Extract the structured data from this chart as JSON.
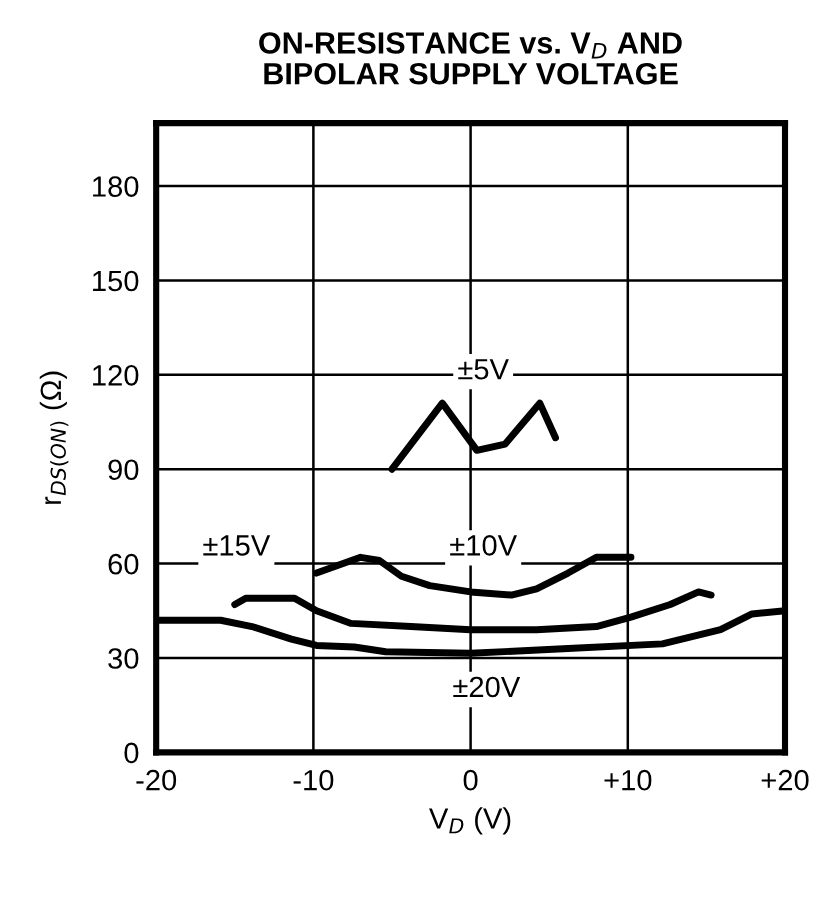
{
  "chart_data": {
    "type": "line",
    "title": "ON-RESISTANCE vs. V$_{D}$ AND\nBIPOLAR SUPPLY VOLTAGE",
    "xlabel": "V$_{D}$ (V)",
    "ylabel": "r$_{DS(ON)}$ (Ω)",
    "xlim": [
      -20,
      20
    ],
    "ylim": [
      0,
      200
    ],
    "xticks": [
      {
        "value": -20,
        "label": "-20"
      },
      {
        "value": -10,
        "label": "-10"
      },
      0,
      {
        "value": 10,
        "label": "+10"
      },
      {
        "value": 20,
        "label": "+20"
      }
    ],
    "yticks": [
      0,
      30,
      60,
      90,
      120,
      150,
      180
    ],
    "grid": true,
    "marker": "none",
    "line_style": "solid",
    "series": [
      {
        "color": "#000000",
        "x": [
          -5.0,
          -1.8,
          0.4,
          2.2,
          4.4,
          5.4
        ],
        "values": [
          90,
          111,
          96,
          98,
          111,
          100
        ]
      },
      {
        "color": "#000000",
        "x": [
          -9.8,
          -7.0,
          -5.8,
          -4.4,
          -2.6,
          0,
          2.6,
          4.2,
          6.2,
          8.0,
          10.2
        ],
        "values": [
          57,
          62,
          61,
          56,
          53,
          51,
          50,
          52,
          57,
          62,
          62
        ]
      },
      {
        "color": "#000000",
        "x": [
          -15.0,
          -14.3,
          -11.2,
          -9.8,
          -7.6,
          -3.8,
          0,
          4.2,
          8.0,
          10.2,
          12.7,
          14.5,
          15.3
        ],
        "values": [
          47,
          49,
          49,
          45,
          41,
          40,
          39,
          39,
          40,
          43,
          47,
          51,
          50
        ]
      },
      {
        "color": "#000000",
        "x": [
          -20,
          -15.9,
          -13.9,
          -11.4,
          -9.8,
          -7.4,
          -5.4,
          0,
          6.2,
          12.2,
          15.9,
          17.9,
          20
        ],
        "values": [
          42,
          42,
          40,
          36,
          34,
          33.5,
          32,
          31.5,
          33,
          34.5,
          39,
          44,
          45
        ]
      }
    ],
    "annotations": [
      {
        "text": "±5V",
        "x": 0.8,
        "y": 121
      },
      {
        "text": "±10V",
        "x": 0.8,
        "y": 65
      },
      {
        "text": "±15V",
        "x": -14.9,
        "y": 65
      },
      {
        "text": "±20V",
        "x": 1,
        "y": 20
      }
    ]
  }
}
